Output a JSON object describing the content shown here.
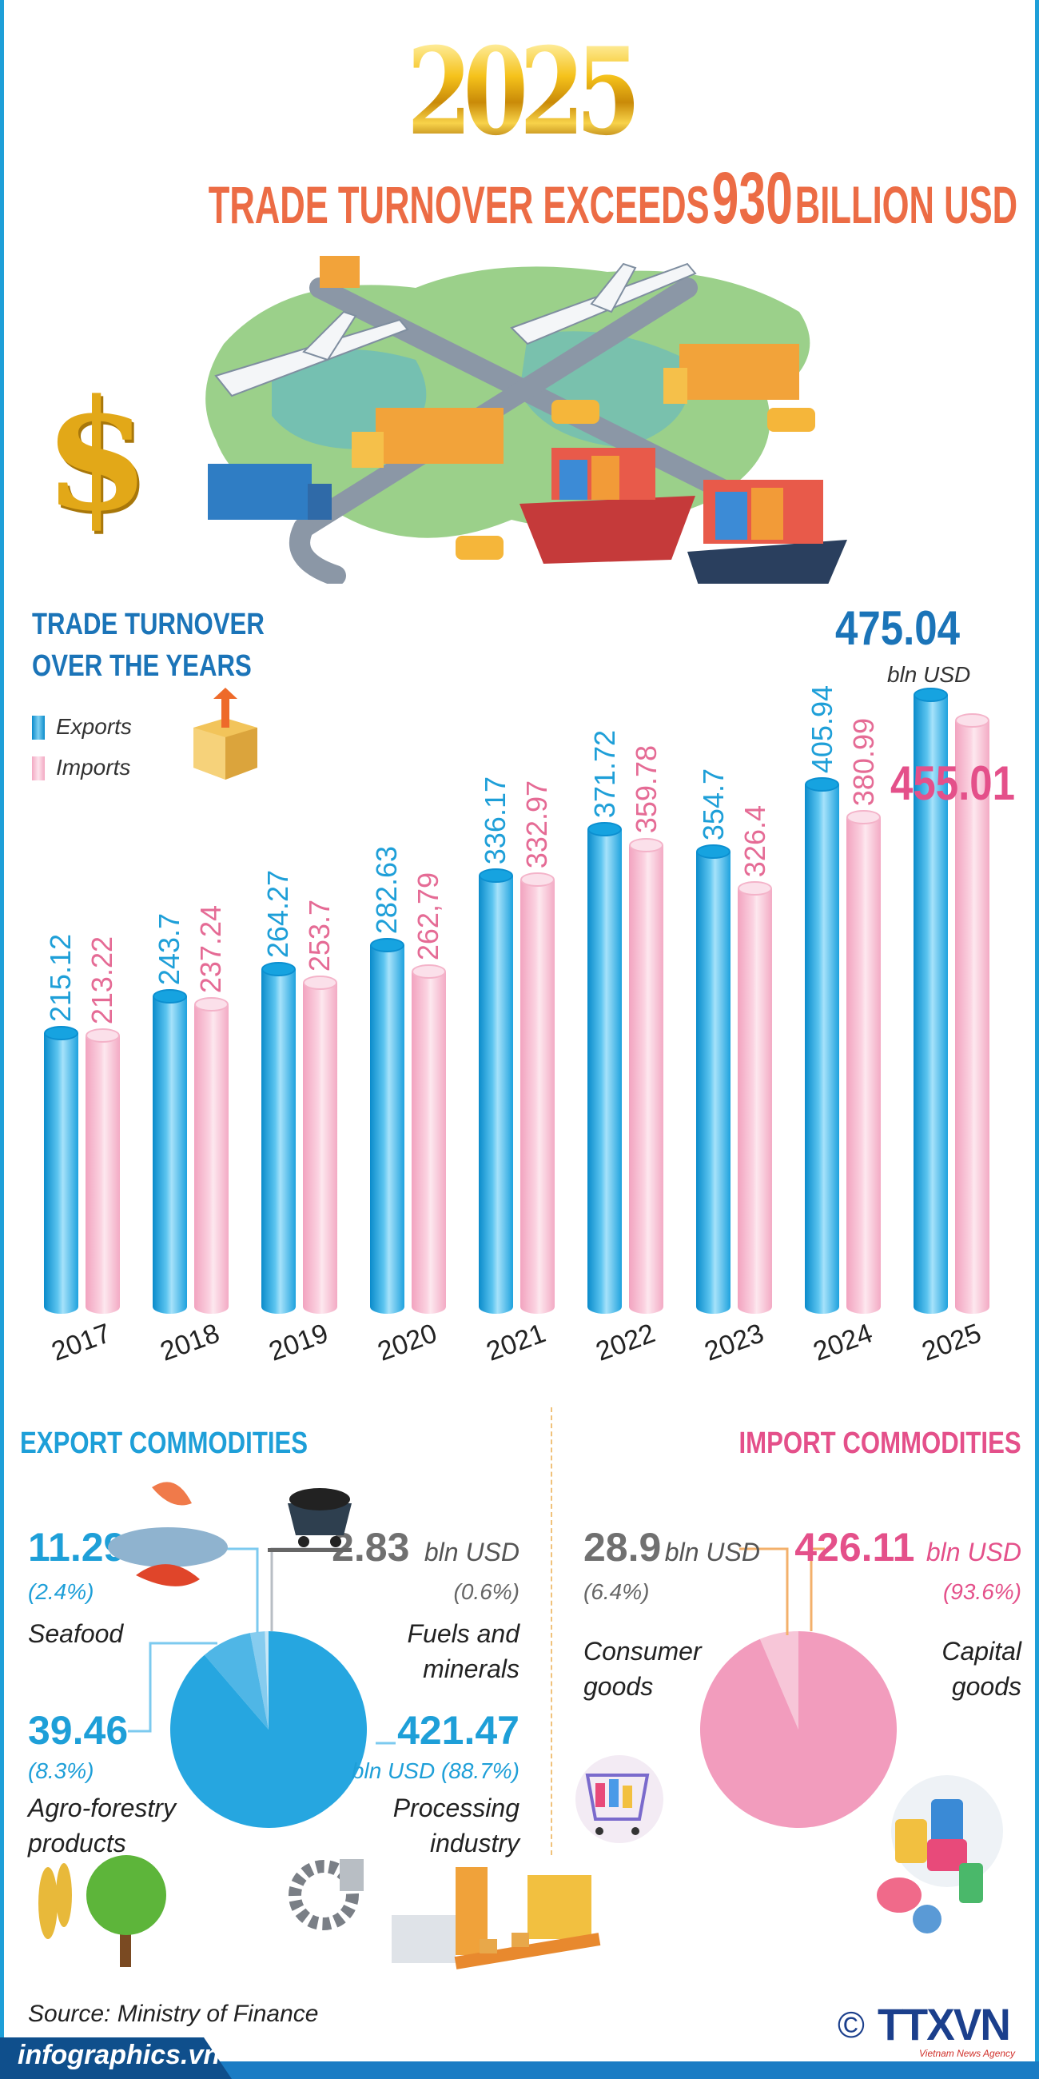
{
  "header": {
    "year": "2025",
    "headline_pre": "TRADE TURNOVER EXCEEDS",
    "headline_num": "930",
    "headline_post": "BILLION USD"
  },
  "colors": {
    "exports": "#1e9fd8",
    "imports": "#e56b95",
    "title": "#ec6c45",
    "heading_blue": "#1b74b8",
    "gold": "#e9b21c"
  },
  "chart_section": {
    "title_line1": "TRADE TURNOVER",
    "title_line2": "OVER THE YEARS",
    "unit": "bln USD",
    "legend": {
      "exports": "Exports",
      "imports": "Imports"
    }
  },
  "chart_data": {
    "type": "bar",
    "title": "TRADE TURNOVER OVER THE YEARS",
    "unit": "bln USD",
    "categories": [
      "2017",
      "2018",
      "2019",
      "2020",
      "2021",
      "2022",
      "2023",
      "2024",
      "2025"
    ],
    "series": [
      {
        "name": "Exports",
        "values": [
          215.12,
          243.7,
          264.27,
          282.63,
          336.17,
          371.72,
          354.7,
          405.94,
          475.04
        ],
        "labels": [
          "215.12",
          "243.7",
          "264.27",
          "282.63",
          "336.17",
          "371.72",
          "354.7",
          "405.94",
          "475.04"
        ]
      },
      {
        "name": "Imports",
        "values": [
          213.22,
          237.24,
          253.7,
          262.79,
          332.97,
          359.78,
          326.4,
          380.99,
          455.01
        ],
        "labels": [
          "213.22",
          "237.24",
          "253.7",
          "262,79",
          "332.97",
          "359.78",
          "326.4",
          "380.99",
          "455.01"
        ]
      }
    ],
    "legend": "top-left",
    "grid": false
  },
  "export_commodities": {
    "title": "EXPORT COMMODITIES",
    "chart_data": {
      "type": "pie",
      "slices": [
        {
          "name": "Fuels and minerals",
          "value": 2.83,
          "percent": 0.6,
          "value_label": "2.83",
          "unit": "bln USD",
          "pct_label": "(0.6%)",
          "color": "#c9e8f7"
        },
        {
          "name": "Seafood",
          "value": 11.29,
          "percent": 2.4,
          "value_label": "11.29",
          "pct_label": "(2.4%)",
          "color": "#86ccef"
        },
        {
          "name": "Agro-forestry products",
          "value": 39.46,
          "percent": 8.3,
          "value_label": "39.46",
          "pct_label": "(8.3%)",
          "color": "#4fb6e6"
        },
        {
          "name": "Processing industry",
          "value": 421.47,
          "percent": 88.7,
          "value_label": "421.47",
          "pct_label": "bln USD (88.7%)",
          "color": "#26a6e0"
        }
      ]
    },
    "labels": {
      "fuels_line1": "Fuels and",
      "fuels_line2": "minerals",
      "agro_line1": "Agro-forestry",
      "agro_line2": "products",
      "proc_line1": "Processing",
      "proc_line2": "industry"
    }
  },
  "import_commodities": {
    "title": "IMPORT COMMODITIES",
    "chart_data": {
      "type": "pie",
      "slices": [
        {
          "name": "Consumer goods",
          "value": 28.9,
          "percent": 6.4,
          "value_label": "28.9",
          "unit": "bln USD",
          "pct_label": "(6.4%)",
          "color": "#f7c6d8"
        },
        {
          "name": "Capital goods",
          "value": 426.11,
          "percent": 93.6,
          "value_label": "426.11",
          "unit": "bln USD",
          "pct_label": "(93.6%)",
          "color": "#f29cbd"
        }
      ]
    },
    "labels": {
      "consumer_line1": "Consumer",
      "consumer_line2": "goods",
      "capital_line1": "Capital",
      "capital_line2": "goods"
    }
  },
  "footer": {
    "source": "Source: Ministry of Finance",
    "site": "infographics.vn",
    "copyright": "©",
    "agency_logo": "TTXVN",
    "agency_name": "Vietnam News Agency"
  }
}
